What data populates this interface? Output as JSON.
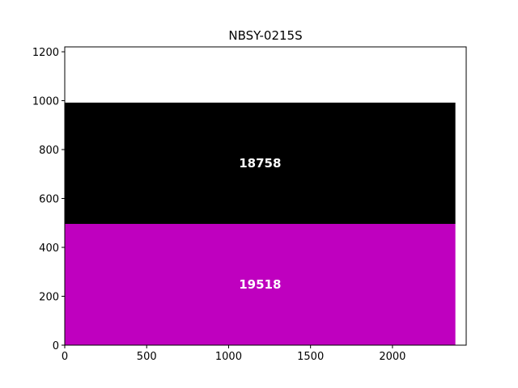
{
  "chart_data": {
    "type": "bar",
    "orientation": "stacked-block",
    "title": "NBSY-0215S",
    "xlabel": "",
    "ylabel": "",
    "xlim": [
      0,
      2450
    ],
    "ylim": [
      0,
      1220
    ],
    "xticks": [
      0,
      500,
      1000,
      1500,
      2000
    ],
    "yticks": [
      0,
      200,
      400,
      600,
      800,
      1000,
      1200
    ],
    "grid": false,
    "blocks": [
      {
        "x0": 0,
        "x1": 2384,
        "y0": 0,
        "y1": 496,
        "color": "#bf00bf",
        "label": "19518"
      },
      {
        "x0": 0,
        "x1": 2384,
        "y0": 496,
        "y1": 992,
        "color": "#000000",
        "label": "18758"
      }
    ]
  }
}
